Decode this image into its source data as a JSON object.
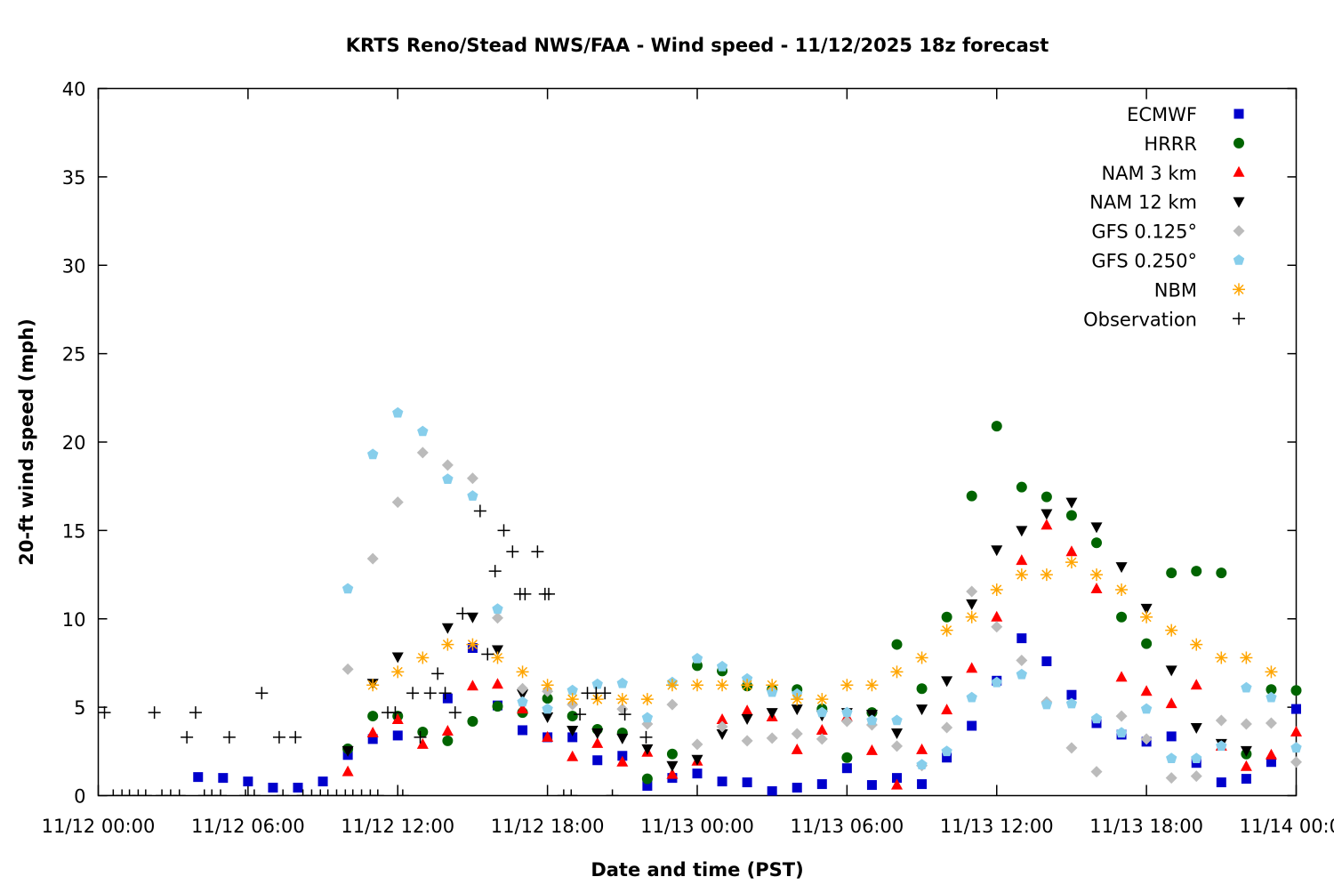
{
  "chart_data": {
    "type": "scatter",
    "title": "KRTS Reno/Stead NWS/FAA - Wind speed - 11/12/2025 18z forecast",
    "xlabel": "Date and time (PST)",
    "ylabel": "20-ft wind speed (mph)",
    "x_units": "hours since 11/12 00:00 PST",
    "xlim": [
      0,
      48
    ],
    "ylim": [
      0,
      40
    ],
    "x_ticks": [
      {
        "hour": 0,
        "label": "11/12 00:00"
      },
      {
        "hour": 6,
        "label": "11/12 06:00"
      },
      {
        "hour": 12,
        "label": "11/12 12:00"
      },
      {
        "hour": 18,
        "label": "11/12 18:00"
      },
      {
        "hour": 24,
        "label": "11/13 00:00"
      },
      {
        "hour": 30,
        "label": "11/13 06:00"
      },
      {
        "hour": 36,
        "label": "11/13 12:00"
      },
      {
        "hour": 42,
        "label": "11/13 18:00"
      },
      {
        "hour": 48,
        "label": "11/14 00:00"
      }
    ],
    "y_ticks": [
      "0",
      "5",
      "10",
      "15",
      "20",
      "25",
      "30",
      "35",
      "40"
    ],
    "legend_position": "top-right",
    "series": [
      {
        "name": "ECMWF",
        "color": "#0000cc",
        "marker": "square",
        "start_hour": 4,
        "values": [
          1.05,
          1.0,
          0.8,
          0.45,
          0.45,
          0.8,
          2.3,
          3.2,
          3.4,
          null,
          5.5,
          8.35,
          5.1,
          3.7,
          3.3,
          3.3,
          2.0,
          2.25,
          0.55,
          1.0,
          1.25,
          0.8,
          0.75,
          0.25,
          0.45,
          0.65,
          1.55,
          0.6,
          1.0,
          0.65,
          2.15,
          3.95,
          6.5,
          8.9,
          7.6,
          5.7,
          4.1,
          3.45,
          3.05,
          3.35,
          1.85,
          0.75,
          0.95,
          1.9,
          4.9
        ]
      },
      {
        "name": "HRRR",
        "color": "#006400",
        "marker": "circle",
        "start_hour": 10,
        "values": [
          2.65,
          4.5,
          4.5,
          3.6,
          3.1,
          4.2,
          5.05,
          4.7,
          5.5,
          4.5,
          3.75,
          3.55,
          0.95,
          2.35,
          7.35,
          7.05,
          6.2,
          6.0,
          6.0,
          4.9,
          2.15,
          4.7,
          8.55,
          6.05,
          10.1,
          16.95,
          20.9,
          17.45,
          16.9,
          15.85,
          14.3,
          10.1,
          8.6,
          12.6,
          12.7,
          12.6,
          2.35,
          6.0,
          5.95
        ]
      },
      {
        "name": "NAM 3 km",
        "color": "#ff0000",
        "marker": "triangle-up",
        "start_hour": 10,
        "values": [
          1.35,
          3.55,
          4.3,
          2.9,
          3.65,
          6.2,
          6.3,
          4.9,
          3.3,
          2.2,
          2.95,
          1.9,
          2.45,
          1.2,
          1.95,
          4.3,
          4.8,
          4.45,
          2.6,
          3.7,
          4.45,
          2.55,
          0.6,
          2.6,
          4.85,
          7.2,
          10.1,
          13.3,
          15.3,
          13.8,
          11.7,
          6.7,
          5.9,
          5.2,
          6.25,
          2.8,
          1.65,
          2.3,
          3.6
        ]
      },
      {
        "name": "NAM 12 km",
        "color": "#000000",
        "marker": "triangle-down",
        "start_hour": 10,
        "values": [
          2.55,
          6.35,
          7.85,
          null,
          9.5,
          10.1,
          8.25,
          5.75,
          4.45,
          3.7,
          3.55,
          3.25,
          2.65,
          1.7,
          2.05,
          3.5,
          4.35,
          4.7,
          4.9,
          4.55,
          4.7,
          4.6,
          3.55,
          4.9,
          6.5,
          10.85,
          13.9,
          15.0,
          15.95,
          16.6,
          15.2,
          12.95,
          10.6,
          7.1,
          3.85,
          2.95,
          2.55
        ]
      },
      {
        "name": "GFS 0.125°",
        "color": "#bbbbbb",
        "marker": "diamond",
        "start_hour": 10,
        "values": [
          7.15,
          13.4,
          16.6,
          19.4,
          18.7,
          17.95,
          10.05,
          6.05,
          5.9,
          5.15,
          null,
          4.9,
          4.05,
          5.15,
          2.9,
          3.9,
          3.1,
          3.25,
          3.5,
          3.2,
          4.2,
          4.0,
          2.8,
          1.7,
          3.85,
          11.55,
          9.55,
          7.65,
          5.3,
          2.7,
          1.35,
          4.5,
          3.2,
          1.0,
          1.1,
          4.25,
          4.05,
          4.1,
          1.9
        ]
      },
      {
        "name": "GFS 0.250°",
        "color": "#87ceeb",
        "marker": "pentagon",
        "start_hour": 10,
        "values": [
          11.7,
          19.3,
          21.65,
          20.6,
          17.9,
          16.95,
          10.55,
          5.3,
          4.9,
          5.95,
          6.3,
          6.35,
          4.4,
          6.4,
          7.75,
          7.3,
          6.6,
          5.85,
          5.75,
          4.7,
          4.7,
          4.25,
          4.25,
          1.75,
          2.5,
          5.55,
          6.4,
          6.85,
          5.15,
          5.2,
          4.35,
          3.55,
          4.9,
          2.1,
          2.1,
          2.8,
          6.1,
          5.55,
          2.7
        ]
      },
      {
        "name": "NBM",
        "color": "#ffa500",
        "marker": "asterisk",
        "start_hour": 11,
        "values": [
          6.25,
          7.0,
          7.8,
          8.55,
          8.55,
          7.8,
          7.0,
          6.25,
          5.45,
          5.45,
          5.45,
          5.45,
          6.25,
          6.25,
          6.25,
          6.25,
          6.25,
          5.45,
          5.45,
          6.25,
          6.25,
          7.0,
          7.8,
          9.35,
          10.1,
          11.65,
          12.5,
          12.5,
          13.2,
          12.5,
          11.65,
          10.1,
          9.35,
          8.55,
          7.8,
          7.8,
          7.0
        ]
      },
      {
        "name": "Observation",
        "color": "#000000",
        "marker": "plus",
        "points": [
          [
            0.25,
            4.7
          ],
          [
            0.6,
            0
          ],
          [
            0.95,
            0
          ],
          [
            1.25,
            0
          ],
          [
            1.6,
            0
          ],
          [
            1.9,
            0
          ],
          [
            2.25,
            4.7
          ],
          [
            2.55,
            0
          ],
          [
            2.9,
            0
          ],
          [
            3.25,
            0
          ],
          [
            3.55,
            3.3
          ],
          [
            3.9,
            4.7
          ],
          [
            4.25,
            0
          ],
          [
            4.55,
            0
          ],
          [
            4.9,
            0
          ],
          [
            5.25,
            3.3
          ],
          [
            5.9,
            0
          ],
          [
            6.25,
            0
          ],
          [
            6.55,
            5.8
          ],
          [
            7.25,
            3.3
          ],
          [
            7.4,
            0
          ],
          [
            7.9,
            3.3
          ],
          [
            8.2,
            0
          ],
          [
            8.55,
            0
          ],
          [
            8.9,
            0
          ],
          [
            9.2,
            0
          ],
          [
            9.55,
            0
          ],
          [
            9.9,
            0
          ],
          [
            10.2,
            0
          ],
          [
            10.55,
            0
          ],
          [
            10.9,
            0
          ],
          [
            11.2,
            0
          ],
          [
            11.6,
            4.7
          ],
          [
            11.9,
            4.7
          ],
          [
            12.2,
            0
          ],
          [
            12.6,
            5.8
          ],
          [
            12.9,
            3.3
          ],
          [
            13.3,
            5.8
          ],
          [
            13.6,
            6.9
          ],
          [
            13.9,
            5.8
          ],
          [
            14.3,
            4.7
          ],
          [
            14.6,
            10.3
          ],
          [
            15.3,
            16.1
          ],
          [
            15.6,
            8.0
          ],
          [
            15.9,
            12.7
          ],
          [
            16.25,
            15.0
          ],
          [
            16.6,
            13.8
          ],
          [
            16.9,
            11.4
          ],
          [
            17.1,
            11.4
          ],
          [
            17.6,
            13.8
          ],
          [
            17.9,
            11.4
          ],
          [
            18.05,
            11.4
          ],
          [
            18.65,
            0
          ],
          [
            18.95,
            0
          ],
          [
            19.3,
            4.6
          ],
          [
            19.6,
            5.8
          ],
          [
            19.95,
            5.8
          ],
          [
            20.3,
            5.8
          ],
          [
            20.6,
            0
          ],
          [
            21.1,
            4.6
          ],
          [
            21.95,
            3.3
          ]
        ]
      }
    ]
  }
}
